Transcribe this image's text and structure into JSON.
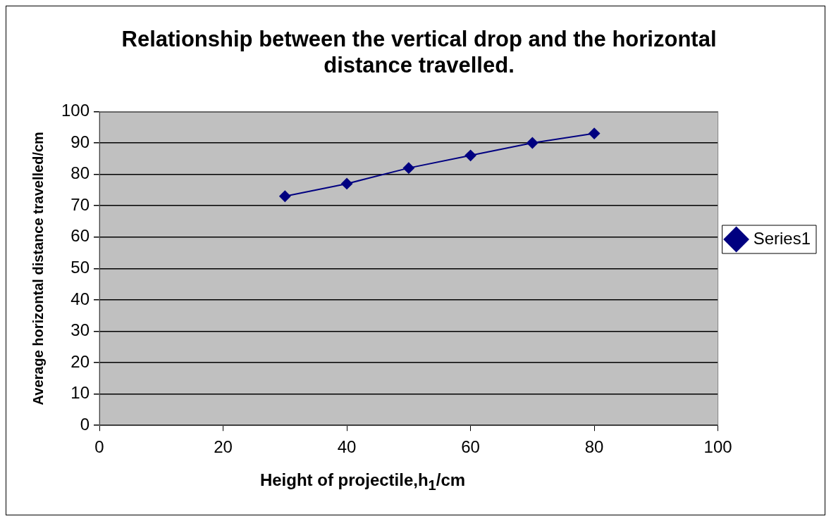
{
  "chart_data": {
    "type": "line",
    "title": "Relationship between the vertical drop and the horizontal distance travelled.",
    "xlabel": "Height of projectile,h$_{1}$/cm",
    "ylabel": "Average horizontal distance travelled/cm",
    "x": [
      30,
      40,
      50,
      60,
      70,
      80
    ],
    "series": [
      {
        "name": "Series1",
        "color": "#000080",
        "values": [
          73,
          77,
          82,
          86,
          90,
          93
        ]
      }
    ],
    "xlim": [
      0,
      100
    ],
    "xticks": [
      0,
      20,
      40,
      60,
      80,
      100
    ],
    "ylim": [
      0,
      100
    ],
    "yticks": [
      0,
      10,
      20,
      30,
      40,
      50,
      60,
      70,
      80,
      90,
      100
    ],
    "grid": "y",
    "legend": "right",
    "marker": "diamond",
    "line_style": "solid"
  }
}
